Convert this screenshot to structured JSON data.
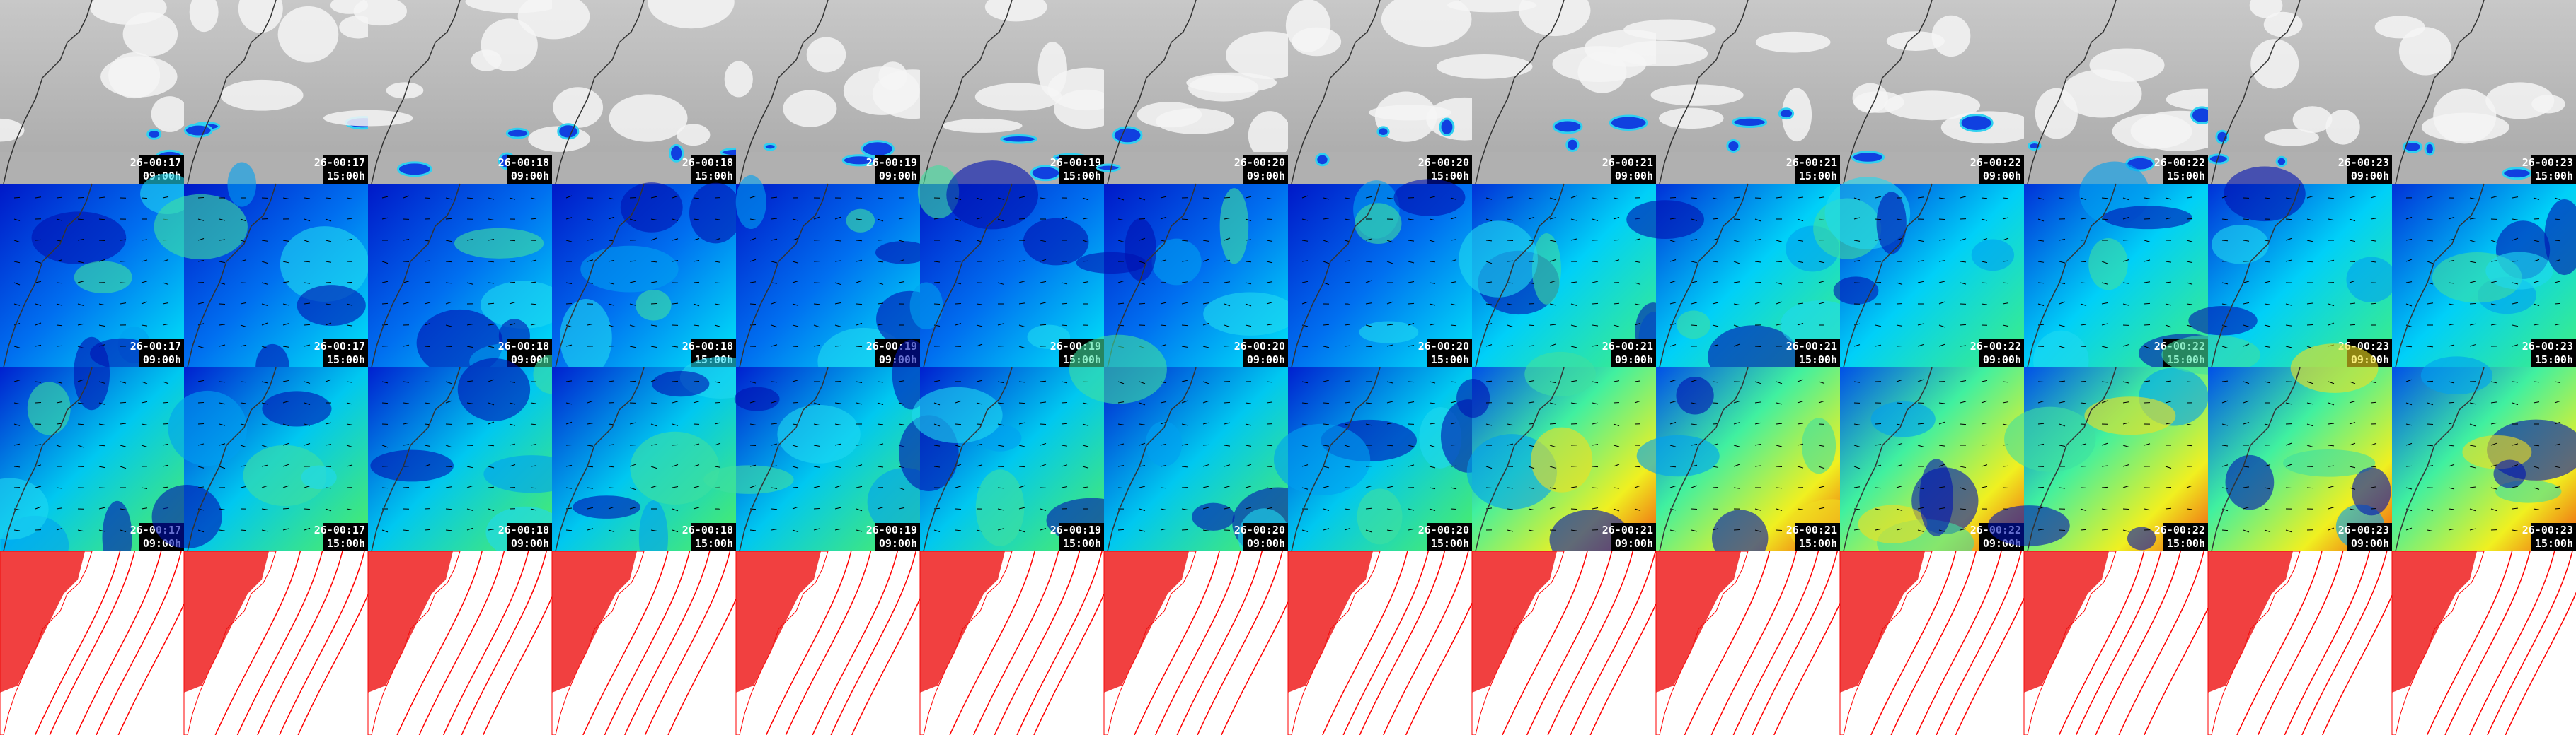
{
  "columns": [
    {
      "date": "26-00:17",
      "time": "09:00h"
    },
    {
      "date": "26-00:17",
      "time": "15:00h"
    },
    {
      "date": "26-00:18",
      "time": "09:00h"
    },
    {
      "date": "26-00:18",
      "time": "15:00h"
    },
    {
      "date": "26-00:19",
      "time": "09:00h"
    },
    {
      "date": "26-00:19",
      "time": "15:00h"
    },
    {
      "date": "26-00:20",
      "time": "09:00h"
    },
    {
      "date": "26-00:20",
      "time": "15:00h"
    },
    {
      "date": "26-00:21",
      "time": "09:00h"
    },
    {
      "date": "26-00:21",
      "time": "15:00h"
    },
    {
      "date": "26-00:22",
      "time": "09:00h"
    },
    {
      "date": "26-00:22",
      "time": "15:00h"
    },
    {
      "date": "26-00:23",
      "time": "09:00h"
    },
    {
      "date": "26-00:23",
      "time": "15:00h"
    }
  ]
}
